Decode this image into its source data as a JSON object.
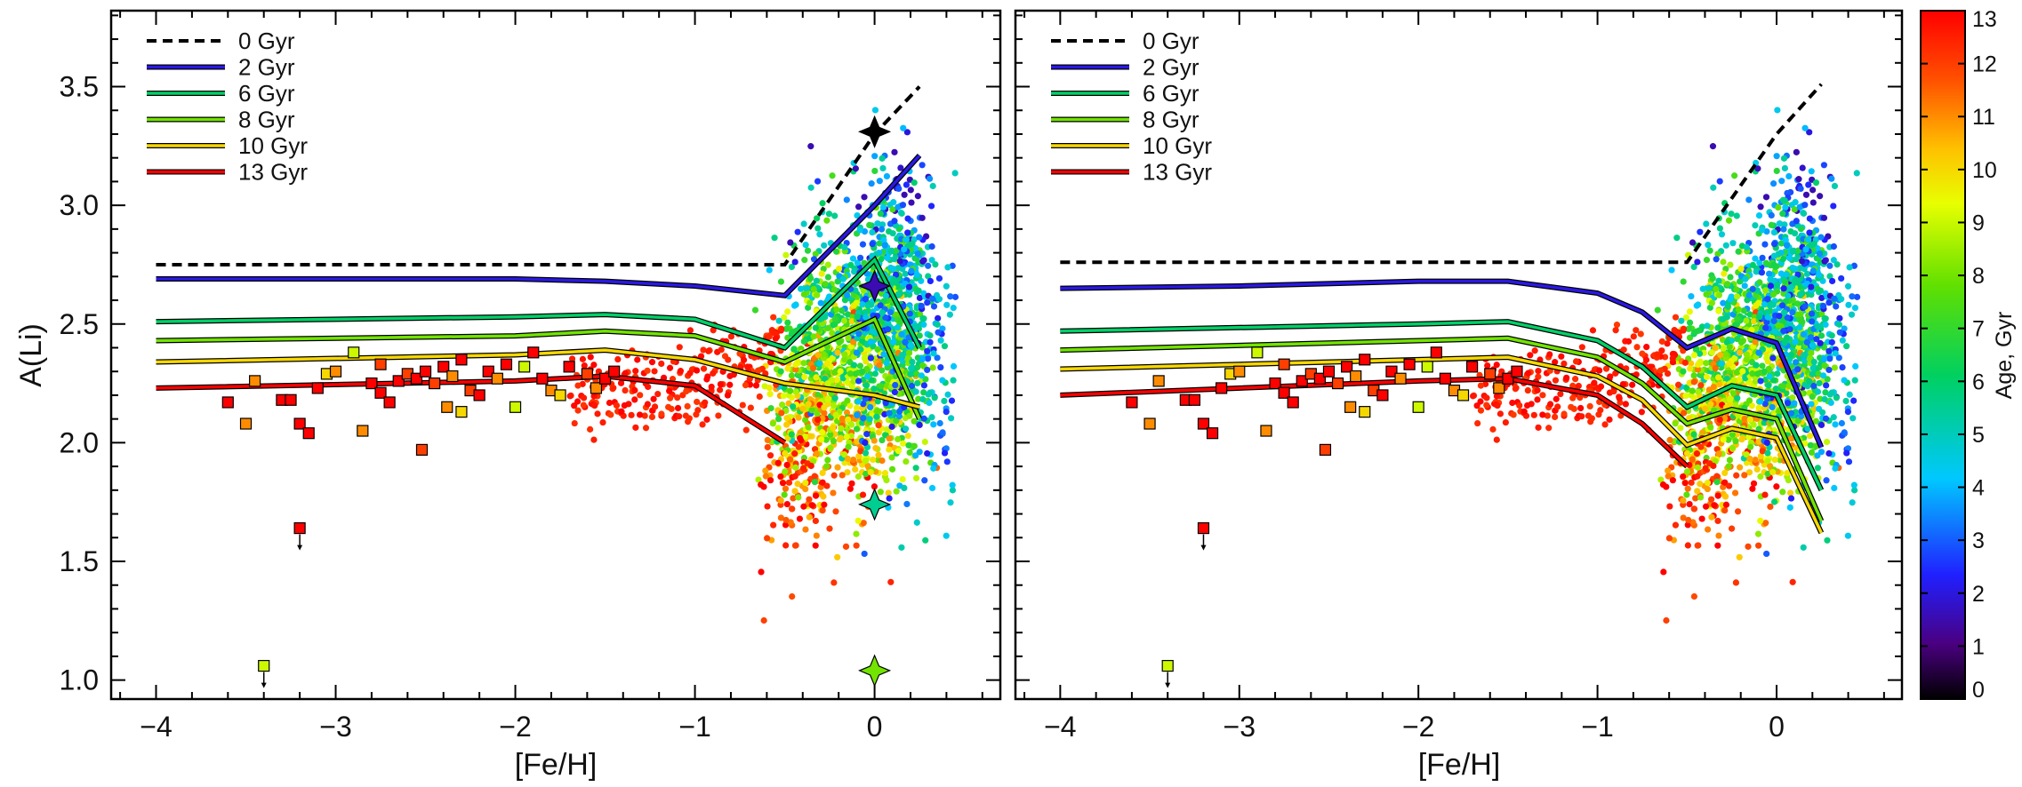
{
  "chart_data": [
    {
      "type": "scatter",
      "panel": "left",
      "xlabel": "[Fe/H]",
      "ylabel": "A(Li)",
      "xlim": [
        -4.25,
        0.7
      ],
      "ylim": [
        0.92,
        3.82
      ],
      "xticks": [
        -4,
        -3,
        -2,
        -1,
        0
      ],
      "yticks": [
        1.0,
        1.5,
        2.0,
        2.5,
        3.0,
        3.5
      ],
      "ytick_labels": [
        "1.0",
        "1.5",
        "2.0",
        "2.5",
        "3.0",
        "3.5"
      ],
      "legend": [
        {
          "label": "0 Gyr",
          "age": 0
        },
        {
          "label": "2 Gyr",
          "age": 2
        },
        {
          "label": "6 Gyr",
          "age": 6
        },
        {
          "label": "8 Gyr",
          "age": 8
        },
        {
          "label": "10 Gyr",
          "age": 10
        },
        {
          "label": "13 Gyr",
          "age": 13
        }
      ],
      "series": [
        {
          "name": "0 Gyr",
          "age": 0,
          "x": [
            -4,
            -0.5,
            0,
            0.25
          ],
          "y": [
            2.75,
            2.75,
            3.3,
            3.5
          ]
        },
        {
          "name": "2 Gyr",
          "age": 2,
          "x": [
            -4,
            -2,
            -1.5,
            -1,
            -0.5,
            0,
            0.25
          ],
          "y": [
            2.69,
            2.69,
            2.68,
            2.66,
            2.62,
            3.0,
            3.21
          ]
        },
        {
          "name": "6 Gyr",
          "age": 6,
          "x": [
            -4,
            -2,
            -1.5,
            -1,
            -0.5,
            0,
            0.25
          ],
          "y": [
            2.51,
            2.53,
            2.54,
            2.52,
            2.4,
            2.77,
            2.4
          ]
        },
        {
          "name": "8 Gyr",
          "age": 8,
          "x": [
            -4,
            -2,
            -1.5,
            -1,
            -0.5,
            0,
            0.25
          ],
          "y": [
            2.43,
            2.45,
            2.47,
            2.45,
            2.34,
            2.52,
            2.1
          ]
        },
        {
          "name": "10 Gyr",
          "age": 10,
          "x": [
            -4,
            -2,
            -1.5,
            -1,
            -0.5,
            0,
            0.25
          ],
          "y": [
            2.34,
            2.37,
            2.39,
            2.35,
            2.25,
            2.2,
            2.15
          ]
        },
        {
          "name": "13 Gyr",
          "age": 13,
          "x": [
            -4,
            -2,
            -1.5,
            -1,
            -0.5
          ],
          "y": [
            2.23,
            2.26,
            2.28,
            2.24,
            2.0
          ]
        }
      ],
      "stars": [
        {
          "x": 0,
          "y": 3.31,
          "age": 0
        },
        {
          "x": 0,
          "y": 2.66,
          "age": 1.5
        },
        {
          "x": 0,
          "y": 1.74,
          "age": 5.5
        },
        {
          "x": 0,
          "y": 1.04,
          "age": 8
        }
      ]
    },
    {
      "type": "scatter",
      "panel": "right",
      "xlabel": "[Fe/H]",
      "xlim": [
        -4.25,
        0.7
      ],
      "ylim": [
        0.92,
        3.82
      ],
      "xticks": [
        -4,
        -3,
        -2,
        -1,
        0
      ],
      "legend": [
        {
          "label": "0 Gyr",
          "age": 0
        },
        {
          "label": "2 Gyr",
          "age": 2
        },
        {
          "label": "6 Gyr",
          "age": 6
        },
        {
          "label": "8 Gyr",
          "age": 8
        },
        {
          "label": "10 Gyr",
          "age": 10
        },
        {
          "label": "13 Gyr",
          "age": 13
        }
      ],
      "series": [
        {
          "name": "0 Gyr",
          "age": 0,
          "x": [
            -4,
            -0.5,
            0,
            0.25
          ],
          "y": [
            2.76,
            2.76,
            3.3,
            3.51
          ]
        },
        {
          "name": "2 Gyr",
          "age": 2,
          "x": [
            -4,
            -3,
            -2,
            -1.5,
            -1,
            -0.75,
            -0.5,
            -0.25,
            0,
            0.25
          ],
          "y": [
            2.65,
            2.66,
            2.68,
            2.68,
            2.63,
            2.55,
            2.4,
            2.48,
            2.42,
            1.98
          ]
        },
        {
          "name": "6 Gyr",
          "age": 6,
          "x": [
            -4,
            -2,
            -1.5,
            -1,
            -0.75,
            -0.5,
            -0.25,
            0,
            0.25
          ],
          "y": [
            2.47,
            2.5,
            2.51,
            2.43,
            2.32,
            2.15,
            2.24,
            2.2,
            1.8
          ]
        },
        {
          "name": "8 Gyr",
          "age": 8,
          "x": [
            -4,
            -2,
            -1.5,
            -1,
            -0.75,
            -0.5,
            -0.25,
            0,
            0.25
          ],
          "y": [
            2.39,
            2.43,
            2.44,
            2.36,
            2.25,
            2.08,
            2.14,
            2.1,
            1.67
          ]
        },
        {
          "name": "10 Gyr",
          "age": 10,
          "x": [
            -4,
            -2,
            -1.5,
            -1,
            -0.75,
            -0.5,
            -0.25,
            0,
            0.25
          ],
          "y": [
            2.31,
            2.35,
            2.36,
            2.28,
            2.18,
            1.99,
            2.06,
            2.02,
            1.62
          ]
        },
        {
          "name": "13 Gyr",
          "age": 13,
          "x": [
            -4,
            -2,
            -1.5,
            -1,
            -0.75,
            -0.5
          ],
          "y": [
            2.2,
            2.26,
            2.27,
            2.2,
            2.08,
            1.9
          ]
        }
      ]
    },
    {
      "type": "heatmap",
      "panel": "colorbar",
      "label": "Age, Gyr",
      "range": [
        0,
        13
      ],
      "ticks": [
        0,
        1,
        2,
        3,
        4,
        5,
        6,
        7,
        8,
        9,
        10,
        11,
        12,
        13
      ],
      "colormap": "rainbow"
    }
  ],
  "squares": [
    [
      -3.6,
      2.17,
      13
    ],
    [
      -3.45,
      2.26,
      11
    ],
    [
      -3.5,
      2.08,
      11
    ],
    [
      -3.3,
      2.18,
      13
    ],
    [
      -3.25,
      2.18,
      13
    ],
    [
      -3.2,
      2.08,
      13
    ],
    [
      -3.15,
      2.04,
      13
    ],
    [
      -3.1,
      2.23,
      13
    ],
    [
      -3.05,
      2.29,
      10
    ],
    [
      -3.0,
      2.3,
      11
    ],
    [
      -2.9,
      2.38,
      9
    ],
    [
      -2.85,
      2.05,
      11
    ],
    [
      -2.8,
      2.25,
      13
    ],
    [
      -2.75,
      2.21,
      13
    ],
    [
      -2.7,
      2.17,
      13
    ],
    [
      -2.65,
      2.26,
      13
    ],
    [
      -2.6,
      2.29,
      12
    ],
    [
      -2.55,
      2.27,
      13
    ],
    [
      -2.5,
      2.3,
      13
    ],
    [
      -2.45,
      2.25,
      12
    ],
    [
      -2.4,
      2.32,
      13
    ],
    [
      -2.35,
      2.28,
      11
    ],
    [
      -2.3,
      2.35,
      13
    ],
    [
      -2.25,
      2.22,
      12
    ],
    [
      -2.2,
      2.2,
      13
    ],
    [
      -2.15,
      2.3,
      13
    ],
    [
      -2.1,
      2.27,
      11
    ],
    [
      -2.05,
      2.33,
      13
    ],
    [
      -2.0,
      2.15,
      9
    ],
    [
      -1.95,
      2.32,
      9
    ],
    [
      -1.9,
      2.38,
      13
    ],
    [
      -1.85,
      2.27,
      13
    ],
    [
      -1.8,
      2.22,
      11
    ],
    [
      -1.7,
      2.32,
      13
    ],
    [
      -1.6,
      2.29,
      12
    ],
    [
      -1.55,
      2.23,
      11
    ],
    [
      -1.5,
      2.27,
      13
    ],
    [
      -1.45,
      2.3,
      13
    ],
    [
      -2.52,
      1.97,
      12
    ],
    [
      -2.38,
      2.15,
      11
    ],
    [
      -2.3,
      2.13,
      10
    ],
    [
      -2.75,
      2.33,
      12
    ],
    [
      -1.75,
      2.2,
      10
    ],
    [
      -3.4,
      1.06,
      9
    ],
    [
      -3.2,
      1.64,
      13
    ]
  ]
}
